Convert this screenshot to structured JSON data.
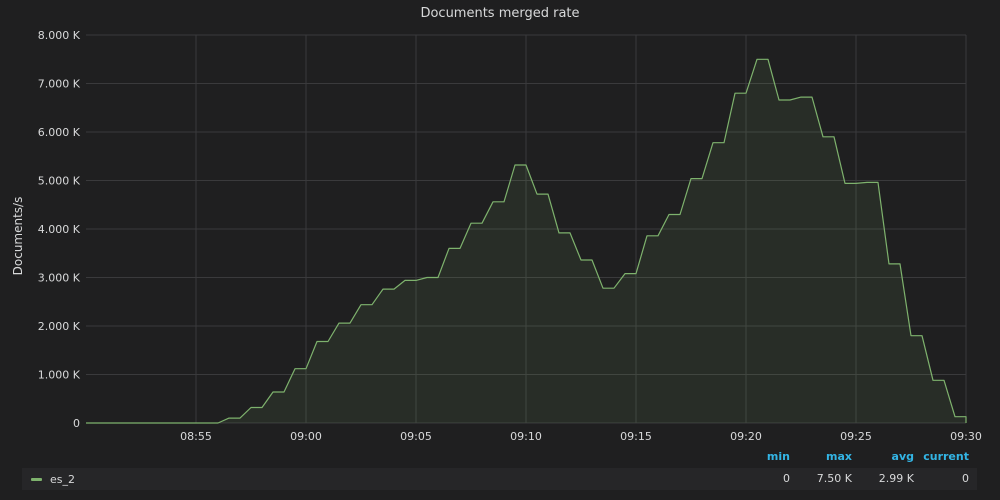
{
  "panel": {
    "title": "Documents merged rate"
  },
  "chart_data": {
    "type": "area",
    "title": "Documents merged rate",
    "ylabel": "Documents/s",
    "xlabel": "",
    "ylim": [
      0,
      8000
    ],
    "y_ticks": [
      0,
      1000,
      2000,
      3000,
      4000,
      5000,
      6000,
      7000,
      8000
    ],
    "y_tick_labels": [
      "0",
      "1.000 K",
      "2.000 K",
      "3.000 K",
      "4.000 K",
      "5.000 K",
      "6.000 K",
      "7.000 K",
      "8.000 K"
    ],
    "xlim": [
      "08:50",
      "09:30"
    ],
    "x_ticks": [
      "08:55",
      "09:00",
      "09:05",
      "09:10",
      "09:15",
      "09:20",
      "09:25",
      "09:30"
    ],
    "grid": true,
    "legend_position": "bottom",
    "series": [
      {
        "name": "es_2",
        "color": "#7eb26d",
        "points": [
          [
            "08:50:00",
            0
          ],
          [
            "08:50:30",
            0
          ],
          [
            "08:51:00",
            0
          ],
          [
            "08:51:30",
            0
          ],
          [
            "08:52:00",
            0
          ],
          [
            "08:52:30",
            0
          ],
          [
            "08:53:00",
            0
          ],
          [
            "08:53:30",
            0
          ],
          [
            "08:54:00",
            0
          ],
          [
            "08:54:30",
            0
          ],
          [
            "08:55:00",
            0
          ],
          [
            "08:55:30",
            0
          ],
          [
            "08:56:00",
            0
          ],
          [
            "08:56:30",
            100
          ],
          [
            "08:57:00",
            100
          ],
          [
            "08:57:30",
            320
          ],
          [
            "08:58:00",
            320
          ],
          [
            "08:58:30",
            640
          ],
          [
            "08:59:00",
            640
          ],
          [
            "08:59:30",
            1120
          ],
          [
            "09:00:00",
            1120
          ],
          [
            "09:00:30",
            1680
          ],
          [
            "09:01:00",
            1680
          ],
          [
            "09:01:30",
            2060
          ],
          [
            "09:02:00",
            2060
          ],
          [
            "09:02:30",
            2440
          ],
          [
            "09:03:00",
            2440
          ],
          [
            "09:03:30",
            2760
          ],
          [
            "09:04:00",
            2760
          ],
          [
            "09:04:30",
            2940
          ],
          [
            "09:05:00",
            2940
          ],
          [
            "09:05:30",
            3000
          ],
          [
            "09:06:00",
            3000
          ],
          [
            "09:06:30",
            3600
          ],
          [
            "09:07:00",
            3600
          ],
          [
            "09:07:30",
            4120
          ],
          [
            "09:08:00",
            4120
          ],
          [
            "09:08:30",
            4560
          ],
          [
            "09:09:00",
            4560
          ],
          [
            "09:09:30",
            5320
          ],
          [
            "09:10:00",
            5320
          ],
          [
            "09:10:30",
            4720
          ],
          [
            "09:11:00",
            4720
          ],
          [
            "09:11:30",
            3920
          ],
          [
            "09:12:00",
            3920
          ],
          [
            "09:12:30",
            3360
          ],
          [
            "09:13:00",
            3360
          ],
          [
            "09:13:30",
            2780
          ],
          [
            "09:14:00",
            2780
          ],
          [
            "09:14:30",
            3080
          ],
          [
            "09:15:00",
            3080
          ],
          [
            "09:15:30",
            3860
          ],
          [
            "09:16:00",
            3860
          ],
          [
            "09:16:30",
            4300
          ],
          [
            "09:17:00",
            4300
          ],
          [
            "09:17:30",
            5040
          ],
          [
            "09:18:00",
            5040
          ],
          [
            "09:18:30",
            5780
          ],
          [
            "09:19:00",
            5780
          ],
          [
            "09:19:30",
            6800
          ],
          [
            "09:20:00",
            6800
          ],
          [
            "09:20:30",
            7500
          ],
          [
            "09:21:00",
            7500
          ],
          [
            "09:21:30",
            6660
          ],
          [
            "09:22:00",
            6660
          ],
          [
            "09:22:30",
            6720
          ],
          [
            "09:23:00",
            6720
          ],
          [
            "09:23:30",
            5900
          ],
          [
            "09:24:00",
            5900
          ],
          [
            "09:24:30",
            4940
          ],
          [
            "09:25:00",
            4940
          ],
          [
            "09:25:30",
            4960
          ],
          [
            "09:26:00",
            4960
          ],
          [
            "09:26:30",
            3280
          ],
          [
            "09:27:00",
            3280
          ],
          [
            "09:27:30",
            1800
          ],
          [
            "09:28:00",
            1800
          ],
          [
            "09:28:30",
            880
          ],
          [
            "09:29:00",
            880
          ],
          [
            "09:29:30",
            130
          ],
          [
            "09:30:00",
            130
          ],
          [
            "09:30:30",
            0
          ]
        ]
      }
    ]
  },
  "legend": {
    "headers": {
      "min": "min",
      "max": "max",
      "avg": "avg",
      "current": "current"
    },
    "rows": [
      {
        "name": "es_2",
        "color": "#7eb26d",
        "min": "0",
        "max": "7.50 K",
        "avg": "2.99 K",
        "current": "0"
      }
    ]
  },
  "colors": {
    "background": "#1f1f20",
    "grid": "#3a3a3c",
    "text": "#d8d9da",
    "legend_header": "#33b5e5",
    "series": "#7eb26d"
  }
}
